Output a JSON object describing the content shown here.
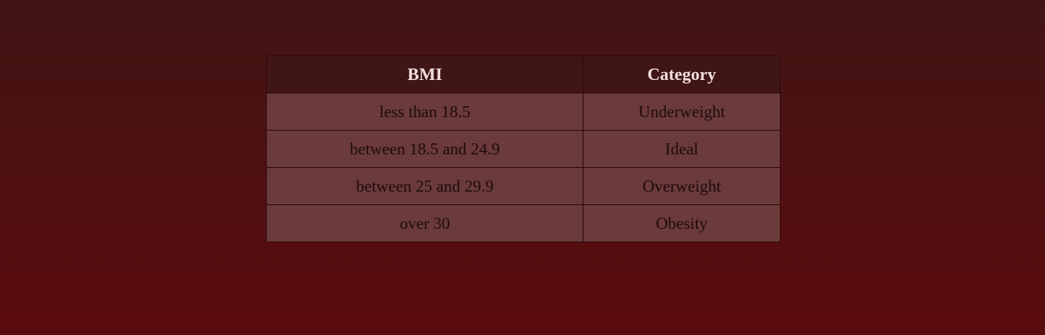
{
  "table": {
    "headers": [
      "BMI",
      "Category"
    ],
    "rows": [
      [
        "less than 18.5",
        "Underweight"
      ],
      [
        "between 18.5 and 24.9",
        "Ideal"
      ],
      [
        "between 25 and 29.9",
        "Overweight"
      ],
      [
        "over 30",
        "Obesity"
      ]
    ]
  },
  "colors": {
    "header_bg": "#3f1516",
    "cell_bg": "#6b3a3b",
    "page_gradient_top": "#411414",
    "page_gradient_bottom": "#5b0b0d"
  }
}
